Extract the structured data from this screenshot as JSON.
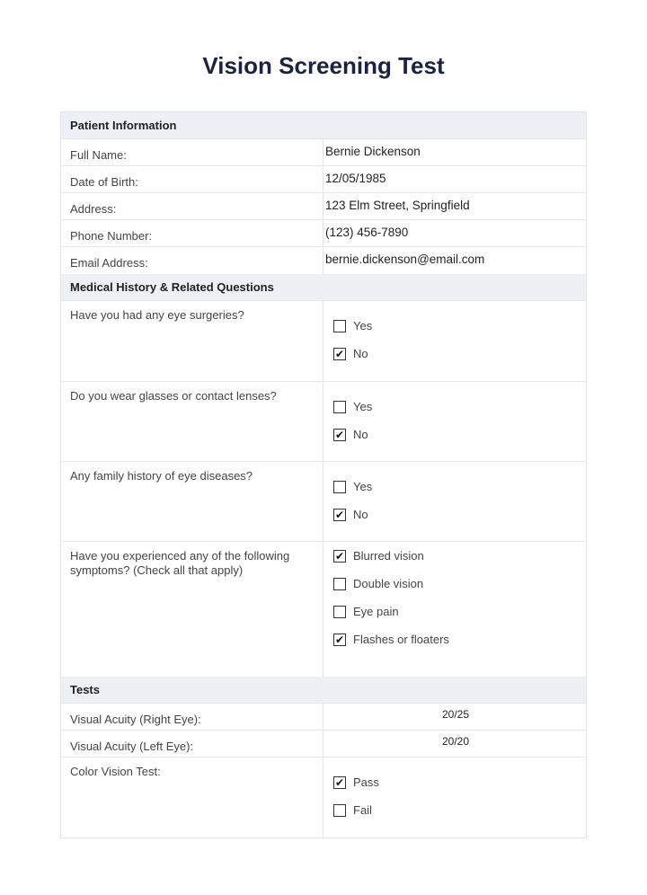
{
  "title": "Vision Screening Test",
  "patient": {
    "heading": "Patient Information",
    "fields": [
      {
        "label": "Full Name:",
        "value": "Bernie Dickenson"
      },
      {
        "label": "Date of Birth:",
        "value": "12/05/1985"
      },
      {
        "label": "Address:",
        "value": "123 Elm Street, Springfield"
      },
      {
        "label": "Phone Number:",
        "value": "(123) 456-7890"
      },
      {
        "label": "Email Address:",
        "value": "bernie.dickenson@email.com"
      }
    ]
  },
  "medical": {
    "heading": "Medical History & Related Questions",
    "questions": [
      {
        "text": "Have you had any eye surgeries?",
        "options": [
          {
            "label": "Yes",
            "checked": false
          },
          {
            "label": "No",
            "checked": true
          }
        ]
      },
      {
        "text": "Do you wear glasses or contact lenses?",
        "options": [
          {
            "label": "Yes",
            "checked": false
          },
          {
            "label": "No",
            "checked": true
          }
        ]
      },
      {
        "text": "Any family history of eye diseases?",
        "options": [
          {
            "label": "Yes",
            "checked": false
          },
          {
            "label": "No",
            "checked": true
          }
        ]
      },
      {
        "text": "Have you experienced any of the following symptoms? (Check all that apply)",
        "options": [
          {
            "label": "Blurred vision",
            "checked": true
          },
          {
            "label": "Double vision",
            "checked": false
          },
          {
            "label": "Eye pain",
            "checked": false
          },
          {
            "label": "Flashes or floaters",
            "checked": true
          }
        ]
      }
    ]
  },
  "tests": {
    "heading": "Tests",
    "fields": [
      {
        "label": "Visual Acuity (Right Eye):",
        "value": "20/25"
      },
      {
        "label": "Visual Acuity (Left Eye):",
        "value": "20/20"
      }
    ],
    "color_vision": {
      "text": "Color Vision Test:",
      "options": [
        {
          "label": "Pass",
          "checked": true
        },
        {
          "label": "Fail",
          "checked": false
        }
      ]
    }
  },
  "check_mark": "✔"
}
